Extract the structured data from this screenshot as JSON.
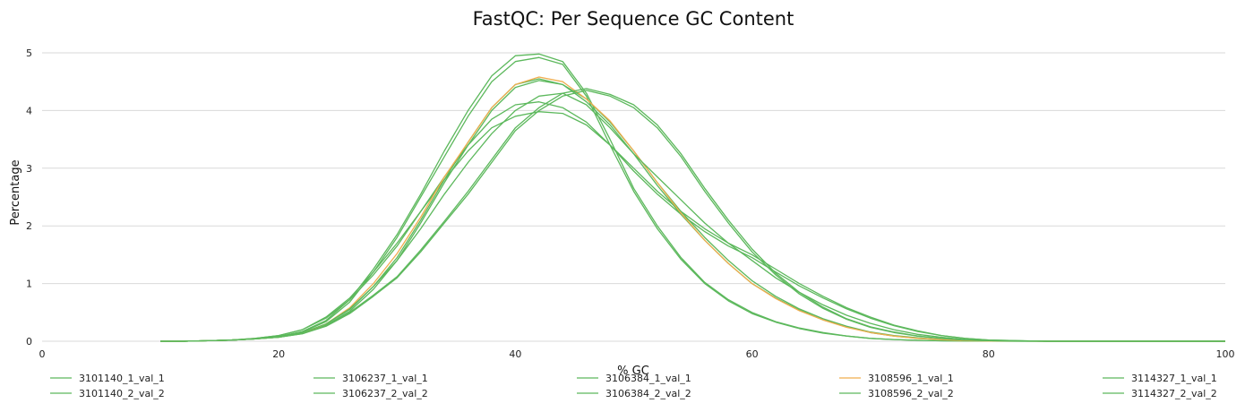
{
  "chart_data": {
    "type": "line",
    "title": "FastQC: Per Sequence GC Content",
    "xlabel": "% GC",
    "ylabel": "Percentage",
    "xlim": [
      0,
      100
    ],
    "ylim": [
      0,
      5
    ],
    "xticks": [
      0,
      20,
      40,
      60,
      80,
      100
    ],
    "yticks": [
      0,
      1,
      2,
      3,
      4,
      5
    ],
    "grid": "horizontal",
    "legend_position": "bottom",
    "colors": {
      "pass": "#5cb85c",
      "warn": "#f0ad4e",
      "grid": "#d9d9d9"
    },
    "x": [
      10,
      12,
      14,
      16,
      18,
      20,
      22,
      24,
      26,
      28,
      30,
      32,
      34,
      36,
      38,
      40,
      42,
      44,
      46,
      48,
      50,
      52,
      54,
      56,
      58,
      60,
      62,
      64,
      66,
      68,
      70,
      72,
      74,
      76,
      78,
      80,
      85,
      90,
      100
    ],
    "series": [
      {
        "name": "3101140_1_val_1",
        "color": "#5cb85c",
        "values": [
          0,
          0,
          0.01,
          0.02,
          0.04,
          0.07,
          0.14,
          0.28,
          0.52,
          0.9,
          1.4,
          2.05,
          2.75,
          3.4,
          4.0,
          4.4,
          4.52,
          4.45,
          4.2,
          3.8,
          3.3,
          2.75,
          2.25,
          1.8,
          1.4,
          1.05,
          0.78,
          0.56,
          0.39,
          0.26,
          0.16,
          0.1,
          0.06,
          0.03,
          0.015,
          0.005,
          0,
          0,
          0
        ]
      },
      {
        "name": "3101140_2_val_2",
        "color": "#5cb85c",
        "values": [
          0,
          0,
          0.01,
          0.02,
          0.04,
          0.07,
          0.14,
          0.3,
          0.55,
          0.95,
          1.45,
          2.1,
          2.8,
          3.45,
          4.05,
          4.45,
          4.55,
          4.45,
          4.15,
          3.75,
          3.25,
          2.7,
          2.2,
          1.75,
          1.35,
          1.0,
          0.75,
          0.54,
          0.37,
          0.25,
          0.15,
          0.09,
          0.05,
          0.03,
          0.01,
          0.005,
          0,
          0,
          0
        ]
      },
      {
        "name": "3106237_1_val_1",
        "color": "#5cb85c",
        "values": [
          0,
          0,
          0.01,
          0.02,
          0.04,
          0.08,
          0.16,
          0.34,
          0.68,
          1.2,
          1.8,
          2.5,
          3.2,
          3.9,
          4.5,
          4.85,
          4.92,
          4.8,
          4.25,
          3.4,
          2.6,
          1.95,
          1.42,
          1.0,
          0.7,
          0.48,
          0.33,
          0.22,
          0.14,
          0.09,
          0.05,
          0.03,
          0.015,
          0.008,
          0.004,
          0.001,
          0,
          0,
          0
        ]
      },
      {
        "name": "3106237_2_val_2",
        "color": "#5cb85c",
        "values": [
          0,
          0,
          0.01,
          0.02,
          0.04,
          0.08,
          0.17,
          0.36,
          0.72,
          1.25,
          1.85,
          2.55,
          3.3,
          4.0,
          4.6,
          4.95,
          4.98,
          4.85,
          4.3,
          3.5,
          2.65,
          2.0,
          1.45,
          1.02,
          0.72,
          0.5,
          0.34,
          0.23,
          0.15,
          0.09,
          0.05,
          0.03,
          0.015,
          0.008,
          0.004,
          0.001,
          0,
          0,
          0
        ]
      },
      {
        "name": "3106384_1_val_1",
        "color": "#5cb85c",
        "values": [
          0,
          0,
          0.01,
          0.02,
          0.05,
          0.1,
          0.2,
          0.4,
          0.72,
          1.15,
          1.65,
          2.25,
          2.85,
          3.4,
          3.85,
          4.1,
          4.15,
          4.05,
          3.8,
          3.4,
          2.95,
          2.55,
          2.2,
          1.9,
          1.65,
          1.45,
          1.2,
          0.96,
          0.75,
          0.56,
          0.4,
          0.27,
          0.17,
          0.1,
          0.05,
          0.02,
          0,
          0,
          0
        ]
      },
      {
        "name": "3106384_2_val_2",
        "color": "#5cb85c",
        "values": [
          0,
          0,
          0.01,
          0.02,
          0.05,
          0.1,
          0.2,
          0.42,
          0.75,
          1.2,
          1.7,
          2.25,
          2.8,
          3.3,
          3.7,
          3.9,
          3.98,
          3.95,
          3.75,
          3.4,
          3.0,
          2.6,
          2.25,
          1.95,
          1.7,
          1.5,
          1.25,
          1.0,
          0.78,
          0.58,
          0.42,
          0.28,
          0.18,
          0.1,
          0.05,
          0.02,
          0,
          0,
          0
        ]
      },
      {
        "name": "3108596_1_val_1",
        "color": "#f0ad4e",
        "values": [
          0,
          0,
          0.01,
          0.02,
          0.04,
          0.07,
          0.14,
          0.3,
          0.58,
          1.0,
          1.52,
          2.15,
          2.85,
          3.45,
          4.05,
          4.45,
          4.58,
          4.5,
          4.2,
          3.82,
          3.3,
          2.75,
          2.22,
          1.75,
          1.35,
          1.0,
          0.74,
          0.53,
          0.37,
          0.24,
          0.15,
          0.09,
          0.05,
          0.03,
          0.01,
          0.005,
          0,
          0,
          0
        ]
      },
      {
        "name": "3108596_2_val_2",
        "color": "#5cb85c",
        "values": [
          0,
          0,
          0.01,
          0.02,
          0.04,
          0.08,
          0.15,
          0.3,
          0.56,
          0.95,
          1.4,
          1.95,
          2.55,
          3.1,
          3.6,
          4.0,
          4.25,
          4.3,
          4.1,
          3.7,
          3.25,
          2.85,
          2.45,
          2.05,
          1.7,
          1.4,
          1.1,
          0.85,
          0.63,
          0.45,
          0.31,
          0.2,
          0.12,
          0.07,
          0.03,
          0.01,
          0,
          0,
          0
        ]
      },
      {
        "name": "3114327_1_val_1",
        "color": "#5cb85c",
        "values": [
          0,
          0,
          0.01,
          0.02,
          0.04,
          0.07,
          0.13,
          0.26,
          0.48,
          0.78,
          1.1,
          1.55,
          2.05,
          2.55,
          3.1,
          3.65,
          4.0,
          4.25,
          4.35,
          4.25,
          4.05,
          3.7,
          3.2,
          2.6,
          2.05,
          1.55,
          1.15,
          0.82,
          0.57,
          0.38,
          0.24,
          0.15,
          0.09,
          0.05,
          0.02,
          0.01,
          0,
          0,
          0
        ]
      },
      {
        "name": "3114327_2_val_2",
        "color": "#5cb85c",
        "values": [
          0,
          0,
          0.01,
          0.02,
          0.04,
          0.07,
          0.13,
          0.27,
          0.5,
          0.8,
          1.12,
          1.58,
          2.08,
          2.6,
          3.15,
          3.7,
          4.05,
          4.3,
          4.38,
          4.28,
          4.1,
          3.75,
          3.25,
          2.65,
          2.1,
          1.6,
          1.18,
          0.85,
          0.59,
          0.39,
          0.25,
          0.16,
          0.09,
          0.05,
          0.02,
          0.01,
          0,
          0,
          0
        ]
      }
    ]
  }
}
